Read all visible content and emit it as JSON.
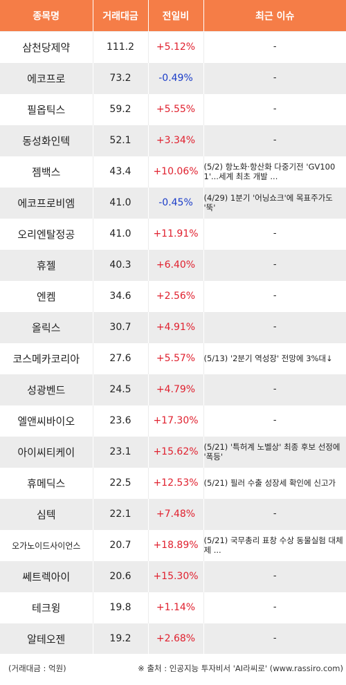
{
  "header": {
    "col_name": "종목명",
    "col_volume": "거래대금",
    "col_change": "전일비",
    "col_issue": "최근 이슈"
  },
  "rows": [
    {
      "name": "삼천당제약",
      "volume": "111.2",
      "change": "+5.12%",
      "dir": "up",
      "issue": "-"
    },
    {
      "name": "에코프로",
      "volume": "73.2",
      "change": "-0.49%",
      "dir": "down",
      "issue": "-"
    },
    {
      "name": "필옵틱스",
      "volume": "59.2",
      "change": "+5.55%",
      "dir": "up",
      "issue": "-"
    },
    {
      "name": "동성화인텍",
      "volume": "52.1",
      "change": "+3.34%",
      "dir": "up",
      "issue": "-"
    },
    {
      "name": "젬백스",
      "volume": "43.4",
      "change": "+10.06%",
      "dir": "up",
      "issue": "(5/2) 항노화·항산화 다중기전 'GV1001'...세계 최초 개발 ..."
    },
    {
      "name": "에코프로비엠",
      "volume": "41.0",
      "change": "-0.45%",
      "dir": "down",
      "issue": "(4/29) 1분기 '어닝쇼크'에 목표주가도 '뚝'"
    },
    {
      "name": "오리엔탈정공",
      "volume": "41.0",
      "change": "+11.91%",
      "dir": "up",
      "issue": "-"
    },
    {
      "name": "휴젤",
      "volume": "40.3",
      "change": "+6.40%",
      "dir": "up",
      "issue": "-"
    },
    {
      "name": "엔켐",
      "volume": "34.6",
      "change": "+2.56%",
      "dir": "up",
      "issue": "-"
    },
    {
      "name": "올릭스",
      "volume": "30.7",
      "change": "+4.91%",
      "dir": "up",
      "issue": "-"
    },
    {
      "name": "코스메카코리아",
      "volume": "27.6",
      "change": "+5.57%",
      "dir": "up",
      "issue": "(5/13) '2분기 역성장' 전망에 3%대↓"
    },
    {
      "name": "성광벤드",
      "volume": "24.5",
      "change": "+4.79%",
      "dir": "up",
      "issue": "-"
    },
    {
      "name": "엘앤씨바이오",
      "volume": "23.6",
      "change": "+17.30%",
      "dir": "up",
      "issue": "-"
    },
    {
      "name": "아이씨티케이",
      "volume": "23.1",
      "change": "+15.62%",
      "dir": "up",
      "issue": "(5/21) '특허계 노벨상' 최종 후보 선정에 '폭등'"
    },
    {
      "name": "휴메딕스",
      "volume": "22.5",
      "change": "+12.53%",
      "dir": "up",
      "issue": "(5/21) 필러 수출 성장세 확인에 신고가"
    },
    {
      "name": "심텍",
      "volume": "22.1",
      "change": "+7.48%",
      "dir": "up",
      "issue": "-"
    },
    {
      "name": "오가노이드사이언스",
      "volume": "20.7",
      "change": "+18.89%",
      "dir": "up",
      "issue": "(5/21) 국무총리 표창 수상 동물실험 대체제 ..."
    },
    {
      "name": "쎄트렉아이",
      "volume": "20.6",
      "change": "+15.30%",
      "dir": "up",
      "issue": "-"
    },
    {
      "name": "테크윙",
      "volume": "19.8",
      "change": "+1.14%",
      "dir": "up",
      "issue": "-"
    },
    {
      "name": "알테오젠",
      "volume": "19.2",
      "change": "+2.68%",
      "dir": "up",
      "issue": "-"
    }
  ],
  "footer": {
    "unit_note": "(거래대금 : 억원)",
    "source_note": "※ 출처 : 인공지능 투자비서 'AI라씨로' (www.rassiro.com)"
  },
  "colors": {
    "header_bg": "#f57d47",
    "row_alt_bg": "#ececec",
    "up": "#e0202e",
    "down": "#1a3cc8"
  }
}
